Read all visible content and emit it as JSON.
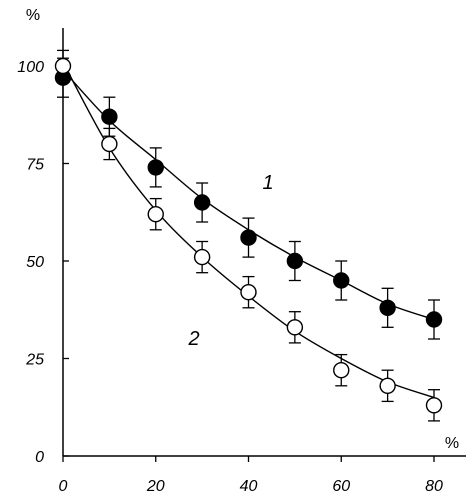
{
  "chart_data": {
    "type": "scatter",
    "y_unit": "%",
    "x_unit": "%",
    "xlim": [
      0,
      80
    ],
    "ylim": [
      0,
      100
    ],
    "x_ticks": [
      "0",
      "20",
      "40",
      "60",
      "80"
    ],
    "y_ticks": [
      "0",
      "25",
      "50",
      "75",
      "100"
    ],
    "grid": false,
    "series": [
      {
        "name": "1",
        "marker": "filled-circle",
        "color": "#000000",
        "x": [
          0,
          10,
          20,
          30,
          40,
          50,
          60,
          70,
          80
        ],
        "y": [
          97,
          87,
          74,
          65,
          56,
          50,
          45,
          38,
          35
        ],
        "error": [
          5,
          5,
          5,
          5,
          5,
          5,
          5,
          5,
          5
        ],
        "fit": [
          [
            0,
            99
          ],
          [
            10,
            86
          ],
          [
            20,
            76
          ],
          [
            30,
            66
          ],
          [
            40,
            58
          ],
          [
            50,
            51
          ],
          [
            60,
            45
          ],
          [
            70,
            39
          ],
          [
            80,
            35
          ]
        ]
      },
      {
        "name": "2",
        "marker": "open-circle",
        "color": "#000000",
        "x": [
          0,
          10,
          20,
          30,
          40,
          50,
          60,
          70,
          80
        ],
        "y": [
          100,
          80,
          62,
          51,
          42,
          33,
          22,
          18,
          13
        ],
        "error": [
          4,
          4,
          4,
          4,
          4,
          4,
          4,
          4,
          4
        ],
        "fit": [
          [
            0,
            101
          ],
          [
            10,
            79
          ],
          [
            20,
            63
          ],
          [
            30,
            51
          ],
          [
            40,
            41
          ],
          [
            50,
            32
          ],
          [
            60,
            25
          ],
          [
            70,
            19
          ],
          [
            80,
            15
          ]
        ]
      }
    ]
  }
}
